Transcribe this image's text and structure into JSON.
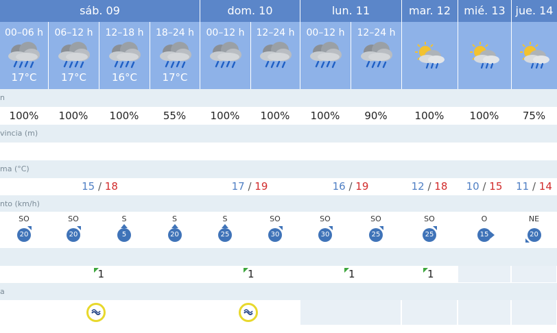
{
  "days": [
    {
      "label": "sáb. 09"
    },
    {
      "label": "dom. 10"
    },
    {
      "label": "lun. 11"
    },
    {
      "label": "mar. 12"
    },
    {
      "label": "mié. 13"
    },
    {
      "label": "jue. 14"
    }
  ],
  "periods": [
    {
      "label": "00–06 h",
      "temp": "17°C",
      "icon": "rain-cloud-icon"
    },
    {
      "label": "06–12 h",
      "temp": "17°C",
      "icon": "rain-cloud-icon"
    },
    {
      "label": "12–18 h",
      "temp": "16°C",
      "icon": "rain-cloud-icon"
    },
    {
      "label": "18–24 h",
      "temp": "17°C",
      "icon": "rain-cloud-icon"
    },
    {
      "label": "00–12 h",
      "temp": "",
      "icon": "rain-cloud-icon"
    },
    {
      "label": "12–24 h",
      "temp": "",
      "icon": "rain-cloud-icon"
    },
    {
      "label": "00–12 h",
      "temp": "",
      "icon": "rain-cloud-icon"
    },
    {
      "label": "12–24 h",
      "temp": "",
      "icon": "rain-cloud-icon"
    },
    {
      "label": "",
      "temp": "",
      "icon": "sun-rain-icon"
    },
    {
      "label": "",
      "temp": "",
      "icon": "sun-rain-icon"
    },
    {
      "label": "",
      "temp": "",
      "icon": "sun-rain-icon"
    }
  ],
  "sections": {
    "precip": "n",
    "snow": "vincia (m)",
    "temp": "ma (°C)",
    "wind": "nto (km/h)",
    "uv_row": "",
    "uv": "a"
  },
  "precip_probs": [
    "100%",
    "100%",
    "100%",
    "55%",
    "100%",
    "100%",
    "100%",
    "90%",
    "100%",
    "100%",
    "75%"
  ],
  "temps": [
    {
      "min": "15",
      "max": "18"
    },
    {
      "min": "17",
      "max": "19"
    },
    {
      "min": "16",
      "max": "19"
    },
    {
      "min": "12",
      "max": "18"
    },
    {
      "min": "10",
      "max": "15"
    },
    {
      "min": "11",
      "max": "14"
    }
  ],
  "winds": [
    {
      "dir": "SO",
      "speed": "20"
    },
    {
      "dir": "SO",
      "speed": "20"
    },
    {
      "dir": "S",
      "speed": "5"
    },
    {
      "dir": "S",
      "speed": "20"
    },
    {
      "dir": "S",
      "speed": "25"
    },
    {
      "dir": "SO",
      "speed": "30"
    },
    {
      "dir": "SO",
      "speed": "30"
    },
    {
      "dir": "SO",
      "speed": "25"
    },
    {
      "dir": "SO",
      "speed": "25"
    },
    {
      "dir": "O",
      "speed": "15"
    },
    {
      "dir": "NE",
      "speed": "20"
    }
  ],
  "uv_values": [
    "1",
    "1",
    "1",
    "1"
  ],
  "colors": {
    "header": "#5b86c9",
    "period": "#8eb2e8",
    "section": "#e5eef4",
    "min": "#4f7fc4",
    "max": "#d12b2b"
  }
}
